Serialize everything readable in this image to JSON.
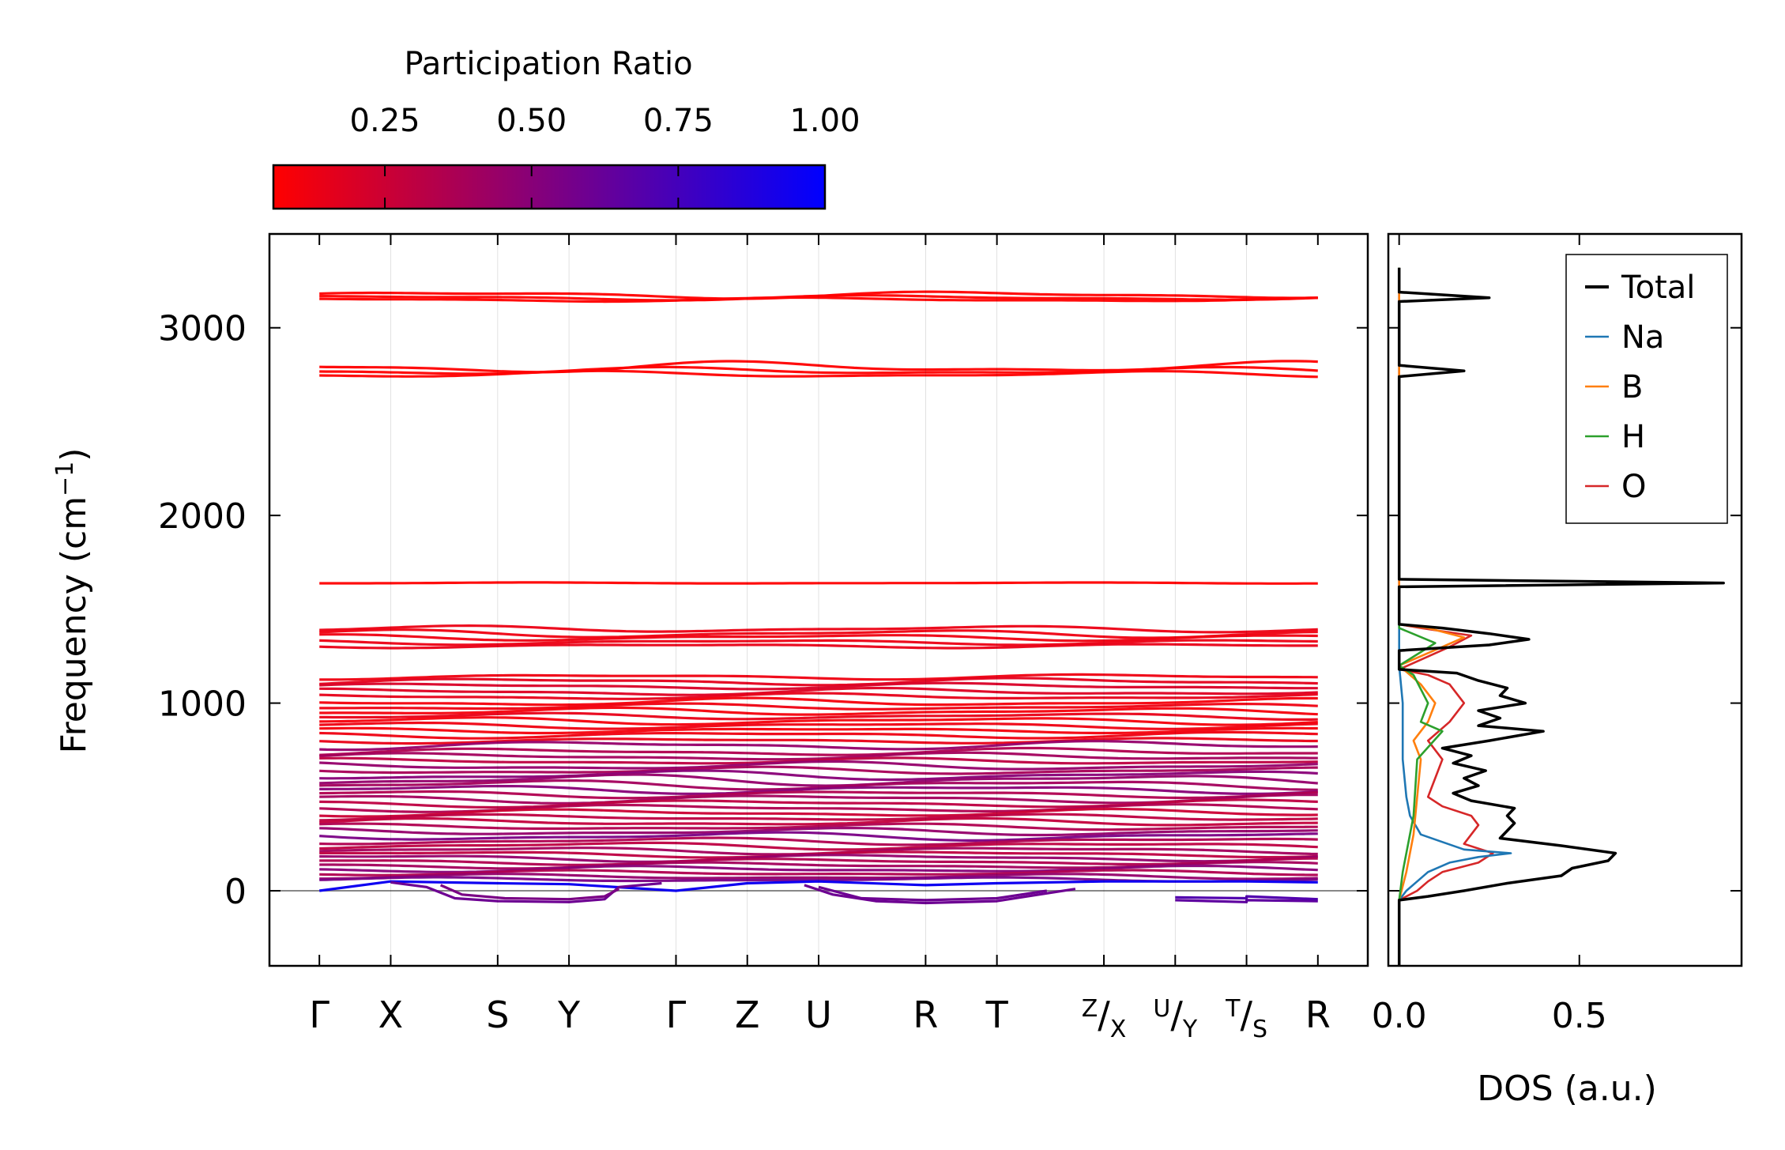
{
  "chart_data": [
    {
      "type": "line",
      "title": "",
      "xlabel": "",
      "ylabel": "Frequency (cm⁻¹)",
      "ylabel_parts": [
        "Frequency (cm",
        "−1",
        ")"
      ],
      "ylim": [
        -400,
        3500
      ],
      "yticks": [
        0,
        1000,
        2000,
        3000
      ],
      "high_symmetry_points": [
        {
          "label": "Γ",
          "x": 0.0
        },
        {
          "label": "X",
          "x": 0.5
        },
        {
          "label": "S",
          "x": 1.25
        },
        {
          "label": "Y",
          "x": 1.75
        },
        {
          "label": "Γ",
          "x": 2.5
        },
        {
          "label": "Z",
          "x": 3.0
        },
        {
          "label": "U",
          "x": 3.5
        },
        {
          "label": "R",
          "x": 4.25
        },
        {
          "label": "T",
          "x": 4.75
        },
        {
          "label": "Z|X",
          "sup": "Z",
          "sub": "X",
          "x": 5.5
        },
        {
          "label": "U|Y",
          "sup": "U",
          "sub": "Y",
          "x": 6.0
        },
        {
          "label": "T|S",
          "sup": "T",
          "sub": "S",
          "x": 6.5
        },
        {
          "label": "R",
          "x": 7.0
        }
      ],
      "xlim": [
        -0.35,
        7.35
      ],
      "zero_line": 0,
      "colorbar": {
        "label": "Participation Ratio",
        "range": [
          0.06,
          1.0
        ],
        "ticks": [
          0.25,
          0.5,
          0.75,
          1.0
        ],
        "tick_labels": [
          "0.25",
          "0.50",
          "0.75",
          "1.00"
        ],
        "color_low": "#ff0000",
        "color_high": "#0000ff"
      },
      "bands": [
        {
          "f": 3175,
          "pr": 0.05,
          "amp": 14
        },
        {
          "f": 3160,
          "pr": 0.05,
          "amp": 10
        },
        {
          "f": 3150,
          "pr": 0.06,
          "amp": 8
        },
        {
          "f": 2790,
          "pr": 0.05,
          "amp": 22
        },
        {
          "f": 2770,
          "pr": 0.05,
          "amp": 14
        },
        {
          "f": 2752,
          "pr": 0.06,
          "amp": 12
        },
        {
          "f": 1640,
          "pr": 0.05,
          "amp": 2
        },
        {
          "f": 1395,
          "pr": 0.13,
          "amp": 12
        },
        {
          "f": 1370,
          "pr": 0.12,
          "amp": 15
        },
        {
          "f": 1350,
          "pr": 0.12,
          "amp": 12
        },
        {
          "f": 1325,
          "pr": 0.13,
          "amp": 10
        },
        {
          "f": 1305,
          "pr": 0.14,
          "amp": 8
        },
        {
          "f": 1140,
          "pr": 0.12,
          "amp": 10
        },
        {
          "f": 1115,
          "pr": 0.16,
          "amp": 14
        },
        {
          "f": 1090,
          "pr": 0.2,
          "amp": 12
        },
        {
          "f": 1060,
          "pr": 0.18,
          "amp": 14
        },
        {
          "f": 1035,
          "pr": 0.15,
          "amp": 12
        },
        {
          "f": 1005,
          "pr": 0.1,
          "amp": 15
        },
        {
          "f": 980,
          "pr": 0.12,
          "amp": 12
        },
        {
          "f": 955,
          "pr": 0.1,
          "amp": 14
        },
        {
          "f": 930,
          "pr": 0.14,
          "amp": 12
        },
        {
          "f": 905,
          "pr": 0.1,
          "amp": 14
        },
        {
          "f": 880,
          "pr": 0.12,
          "amp": 12
        },
        {
          "f": 855,
          "pr": 0.1,
          "amp": 10
        },
        {
          "f": 830,
          "pr": 0.12,
          "amp": 12
        },
        {
          "f": 800,
          "pr": 0.14,
          "amp": 10
        },
        {
          "f": 775,
          "pr": 0.45,
          "amp": 16
        },
        {
          "f": 740,
          "pr": 0.35,
          "amp": 14
        },
        {
          "f": 715,
          "pr": 0.4,
          "amp": 14
        },
        {
          "f": 690,
          "pr": 0.3,
          "amp": 12
        },
        {
          "f": 665,
          "pr": 0.45,
          "amp": 16
        },
        {
          "f": 640,
          "pr": 0.38,
          "amp": 14
        },
        {
          "f": 615,
          "pr": 0.5,
          "amp": 18
        },
        {
          "f": 590,
          "pr": 0.45,
          "amp": 22
        },
        {
          "f": 565,
          "pr": 0.4,
          "amp": 18
        },
        {
          "f": 540,
          "pr": 0.5,
          "amp": 16
        },
        {
          "f": 515,
          "pr": 0.35,
          "amp": 14
        },
        {
          "f": 490,
          "pr": 0.4,
          "amp": 16
        },
        {
          "f": 465,
          "pr": 0.3,
          "amp": 14
        },
        {
          "f": 440,
          "pr": 0.35,
          "amp": 14
        },
        {
          "f": 415,
          "pr": 0.25,
          "amp": 14
        },
        {
          "f": 390,
          "pr": 0.3,
          "amp": 12
        },
        {
          "f": 365,
          "pr": 0.28,
          "amp": 14
        },
        {
          "f": 340,
          "pr": 0.35,
          "amp": 12
        },
        {
          "f": 315,
          "pr": 0.45,
          "amp": 14
        },
        {
          "f": 290,
          "pr": 0.55,
          "amp": 16
        },
        {
          "f": 265,
          "pr": 0.35,
          "amp": 14
        },
        {
          "f": 240,
          "pr": 0.3,
          "amp": 14
        },
        {
          "f": 215,
          "pr": 0.4,
          "amp": 14
        },
        {
          "f": 195,
          "pr": 0.3,
          "amp": 12
        },
        {
          "f": 175,
          "pr": 0.45,
          "amp": 14
        },
        {
          "f": 155,
          "pr": 0.35,
          "amp": 12
        },
        {
          "f": 135,
          "pr": 0.4,
          "amp": 12
        },
        {
          "f": 115,
          "pr": 0.5,
          "amp": 12
        },
        {
          "f": 95,
          "pr": 0.35,
          "amp": 10
        },
        {
          "f": 75,
          "pr": 0.45,
          "amp": 10
        },
        {
          "f": 60,
          "pr": 0.55,
          "amp": 8
        }
      ],
      "acoustic_branches": [
        {
          "name": "acoustic-1",
          "pr": 0.95,
          "points": [
            [
              0,
              0
            ],
            [
              0.5,
              50
            ],
            [
              1.25,
              40
            ],
            [
              1.75,
              35
            ],
            [
              2.5,
              0
            ],
            [
              3.0,
              40
            ],
            [
              3.5,
              50
            ],
            [
              4.25,
              30
            ],
            [
              4.75,
              40
            ],
            [
              5.5,
              50
            ],
            [
              6.0,
              50
            ],
            [
              6.5,
              50
            ],
            [
              7.0,
              45
            ]
          ]
        },
        {
          "name": "soft-1",
          "pr": 0.6,
          "points": [
            [
              0.5,
              45
            ],
            [
              0.75,
              20
            ],
            [
              0.95,
              -40
            ],
            [
              1.25,
              -55
            ],
            [
              1.75,
              -60
            ],
            [
              2.0,
              -45
            ],
            [
              2.1,
              20
            ],
            [
              2.4,
              40
            ]
          ]
        },
        {
          "name": "soft-2",
          "pr": 0.55,
          "points": [
            [
              0.85,
              30
            ],
            [
              1.0,
              -20
            ],
            [
              1.3,
              -40
            ],
            [
              1.75,
              -45
            ],
            [
              2.0,
              -30
            ],
            [
              2.1,
              10
            ]
          ]
        },
        {
          "name": "soft-3",
          "pr": 0.6,
          "points": [
            [
              3.4,
              30
            ],
            [
              3.6,
              -20
            ],
            [
              3.9,
              -55
            ],
            [
              4.25,
              -65
            ],
            [
              4.75,
              -55
            ],
            [
              5.0,
              -25
            ],
            [
              5.3,
              10
            ]
          ]
        },
        {
          "name": "soft-4",
          "pr": 0.6,
          "points": [
            [
              3.5,
              20
            ],
            [
              3.8,
              -40
            ],
            [
              4.25,
              -50
            ],
            [
              4.75,
              -40
            ],
            [
              5.1,
              0
            ]
          ]
        },
        {
          "name": "soft-5",
          "pr": 0.65,
          "points": [
            [
              6.0,
              -50
            ],
            [
              6.5,
              -60
            ],
            [
              6.5,
              -50
            ],
            [
              7.0,
              -55
            ]
          ]
        },
        {
          "name": "soft-6",
          "pr": 0.7,
          "points": [
            [
              6.0,
              -35
            ],
            [
              6.5,
              -40
            ],
            [
              6.5,
              -30
            ],
            [
              7.0,
              -45
            ]
          ]
        }
      ]
    },
    {
      "type": "line",
      "xlabel": "DOS (a.u.)",
      "ylabel": "",
      "xlim": [
        -0.03,
        0.95
      ],
      "xticks": [
        0.0,
        0.5
      ],
      "xtick_labels": [
        "0.0",
        "0.5"
      ],
      "ylim": [
        -400,
        3500
      ],
      "legend_position": "top-right",
      "series": [
        {
          "name": "Total",
          "color": "#000000",
          "points": [
            [
              -50,
              0
            ],
            [
              -30,
              0.08
            ],
            [
              0,
              0.18
            ],
            [
              40,
              0.3
            ],
            [
              80,
              0.45
            ],
            [
              120,
              0.48
            ],
            [
              160,
              0.58
            ],
            [
              200,
              0.6
            ],
            [
              240,
              0.45
            ],
            [
              280,
              0.28
            ],
            [
              320,
              0.3
            ],
            [
              360,
              0.32
            ],
            [
              400,
              0.3
            ],
            [
              440,
              0.32
            ],
            [
              480,
              0.2
            ],
            [
              520,
              0.15
            ],
            [
              560,
              0.22
            ],
            [
              600,
              0.18
            ],
            [
              640,
              0.24
            ],
            [
              680,
              0.15
            ],
            [
              720,
              0.2
            ],
            [
              760,
              0.12
            ],
            [
              800,
              0.25
            ],
            [
              850,
              0.4
            ],
            [
              880,
              0.22
            ],
            [
              920,
              0.28
            ],
            [
              960,
              0.22
            ],
            [
              1000,
              0.35
            ],
            [
              1040,
              0.28
            ],
            [
              1080,
              0.3
            ],
            [
              1120,
              0.22
            ],
            [
              1160,
              0.16
            ],
            [
              1180,
              0
            ],
            [
              1280,
              0
            ],
            [
              1310,
              0.25
            ],
            [
              1340,
              0.36
            ],
            [
              1370,
              0.25
            ],
            [
              1400,
              0.12
            ],
            [
              1420,
              0
            ],
            [
              1620,
              0
            ],
            [
              1640,
              0.9
            ],
            [
              1660,
              0
            ],
            [
              2740,
              0
            ],
            [
              2770,
              0.18
            ],
            [
              2800,
              0
            ],
            [
              3140,
              0
            ],
            [
              3160,
              0.25
            ],
            [
              3190,
              0
            ]
          ]
        },
        {
          "name": "Na",
          "color": "#1f77b4",
          "points": [
            [
              -50,
              0
            ],
            [
              0,
              0.02
            ],
            [
              50,
              0.05
            ],
            [
              100,
              0.08
            ],
            [
              150,
              0.14
            ],
            [
              180,
              0.22
            ],
            [
              200,
              0.31
            ],
            [
              220,
              0.18
            ],
            [
              260,
              0.12
            ],
            [
              300,
              0.06
            ],
            [
              400,
              0.03
            ],
            [
              500,
              0.02
            ],
            [
              700,
              0.01
            ],
            [
              1000,
              0.01
            ],
            [
              1200,
              0
            ]
          ]
        },
        {
          "name": "B",
          "color": "#ff7f0e",
          "points": [
            [
              -50,
              0
            ],
            [
              100,
              0.02
            ],
            [
              300,
              0.04
            ],
            [
              500,
              0.05
            ],
            [
              700,
              0.06
            ],
            [
              800,
              0.04
            ],
            [
              900,
              0.08
            ],
            [
              1000,
              0.1
            ],
            [
              1100,
              0.06
            ],
            [
              1200,
              0
            ],
            [
              1300,
              0.12
            ],
            [
              1350,
              0.18
            ],
            [
              1400,
              0.08
            ],
            [
              1420,
              0
            ]
          ]
        },
        {
          "name": "H",
          "color": "#2ca02c",
          "points": [
            [
              -50,
              0
            ],
            [
              100,
              0.01
            ],
            [
              400,
              0.04
            ],
            [
              700,
              0.05
            ],
            [
              850,
              0.12
            ],
            [
              900,
              0.06
            ],
            [
              1000,
              0.08
            ],
            [
              1150,
              0.04
            ],
            [
              1200,
              0
            ],
            [
              1320,
              0.1
            ],
            [
              1400,
              0
            ],
            [
              1620,
              0
            ],
            [
              1640,
              0.88
            ],
            [
              1660,
              0
            ],
            [
              2740,
              0
            ],
            [
              2770,
              0.18
            ],
            [
              2800,
              0
            ],
            [
              3140,
              0
            ],
            [
              3160,
              0.24
            ],
            [
              3190,
              0
            ]
          ]
        },
        {
          "name": "O",
          "color": "#d62728",
          "points": [
            [
              -50,
              0
            ],
            [
              0,
              0.05
            ],
            [
              50,
              0.08
            ],
            [
              100,
              0.12
            ],
            [
              150,
              0.22
            ],
            [
              200,
              0.26
            ],
            [
              250,
              0.18
            ],
            [
              300,
              0.2
            ],
            [
              350,
              0.22
            ],
            [
              400,
              0.2
            ],
            [
              450,
              0.12
            ],
            [
              500,
              0.08
            ],
            [
              600,
              0.1
            ],
            [
              700,
              0.12
            ],
            [
              800,
              0.08
            ],
            [
              900,
              0.14
            ],
            [
              1000,
              0.18
            ],
            [
              1100,
              0.14
            ],
            [
              1150,
              0.08
            ],
            [
              1180,
              0
            ],
            [
              1300,
              0.14
            ],
            [
              1360,
              0.2
            ],
            [
              1400,
              0.06
            ],
            [
              1420,
              0
            ]
          ]
        }
      ]
    }
  ]
}
